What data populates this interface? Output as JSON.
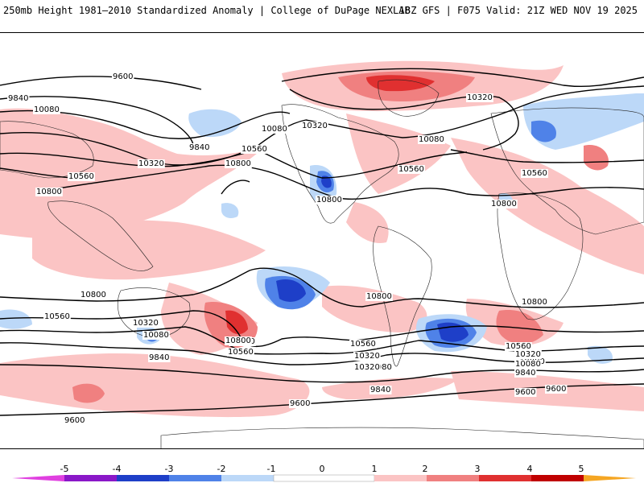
{
  "header": {
    "title": "250mb Height 1981–2010 Standardized Anomaly | College of DuPage NEXLAB",
    "run_info": "18Z GFS | F075 Valid: 21Z WED NOV 19 2025"
  },
  "colors": {
    "neg5": "#e040e0",
    "neg4": "#8a18c8",
    "neg3": "#1e3fc8",
    "neg2": "#4f82e8",
    "neg1": "#bcd8f8",
    "zero": "#ffffff",
    "pos1": "#fbc4c4",
    "pos2": "#f08080",
    "pos3": "#e03030",
    "pos4": "#c00000",
    "pos5": "#f5a623"
  },
  "colorbar": {
    "ticks": [
      "-5",
      "-4",
      "-3",
      "-2",
      "-1",
      "0",
      "1",
      "2",
      "3",
      "4",
      "5"
    ]
  },
  "contours": {
    "labels": [
      "9600",
      "9840",
      "10080",
      "10320",
      "10560",
      "10800",
      "9840",
      "10080",
      "10320",
      "10560",
      "10800",
      "10320",
      "10560",
      "10800",
      "10080",
      "10800",
      "10560",
      "10800",
      "10320",
      "10080",
      "10560",
      "10800",
      "10560",
      "10320",
      "10080",
      "9840",
      "10800",
      "10560",
      "10320",
      "10080",
      "9840",
      "9600",
      "9600",
      "9600",
      "9840",
      "9600",
      "10800",
      "10320",
      "10080",
      "10560",
      "10800"
    ]
  }
}
